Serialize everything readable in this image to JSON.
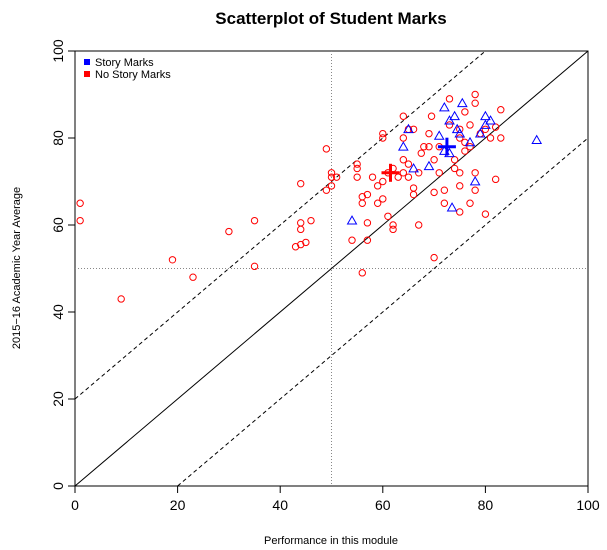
{
  "chart_data": {
    "type": "scatter",
    "title": "Scatterplot of Student Marks",
    "xlabel": "Performance in this module",
    "ylabel": "2015−16 Academic Year Average",
    "xlim": [
      0,
      100
    ],
    "ylim": [
      0,
      100
    ],
    "xticks": [
      "0",
      "20",
      "40",
      "60",
      "80",
      "100"
    ],
    "yticks": [
      "0",
      "20",
      "40",
      "60",
      "80",
      "100"
    ],
    "grid": false,
    "legend_position": "top-left",
    "reference_lines": {
      "identity": {
        "slope": 1,
        "intercept": 0
      },
      "upper_band": {
        "slope": 1,
        "intercept": 20
      },
      "lower_band": {
        "slope": 1,
        "intercept": -20
      },
      "vertical_dotted_x": 50,
      "horizontal_dotted_y": 50
    },
    "series": [
      {
        "name": "Story Marks",
        "color": "#0000ff",
        "marker": "triangle",
        "mean": [
          72.5,
          78
        ],
        "points": [
          [
            54,
            61
          ],
          [
            64,
            78
          ],
          [
            65,
            82
          ],
          [
            66,
            73
          ],
          [
            69,
            73.5
          ],
          [
            71,
            80.5
          ],
          [
            72,
            77
          ],
          [
            72,
            87
          ],
          [
            73,
            76.5
          ],
          [
            73,
            84
          ],
          [
            73.5,
            64
          ],
          [
            74,
            85
          ],
          [
            74.5,
            82
          ],
          [
            75,
            81
          ],
          [
            75.5,
            88
          ],
          [
            77,
            79
          ],
          [
            78,
            70
          ],
          [
            79,
            81
          ],
          [
            80,
            85
          ],
          [
            80,
            83
          ],
          [
            81,
            84
          ],
          [
            90,
            79.5
          ]
        ]
      },
      {
        "name": "No Story Marks",
        "color": "#ff0000",
        "marker": "circle",
        "mean": [
          61.5,
          72
        ],
        "points": [
          [
            1,
            65
          ],
          [
            1,
            61
          ],
          [
            9,
            43
          ],
          [
            19,
            52
          ],
          [
            23,
            48
          ],
          [
            30,
            58.5
          ],
          [
            35,
            61
          ],
          [
            35,
            50.5
          ],
          [
            43,
            55
          ],
          [
            44,
            69.5
          ],
          [
            44,
            60.5
          ],
          [
            44,
            59
          ],
          [
            44,
            55.5
          ],
          [
            45,
            56
          ],
          [
            46,
            61
          ],
          [
            49,
            68
          ],
          [
            49,
            77.5
          ],
          [
            50,
            72
          ],
          [
            50,
            71
          ],
          [
            50,
            69
          ],
          [
            51,
            71
          ],
          [
            54,
            56.5
          ],
          [
            55,
            74
          ],
          [
            55,
            73
          ],
          [
            55,
            71
          ],
          [
            56,
            66.5
          ],
          [
            56,
            65
          ],
          [
            56,
            49
          ],
          [
            57,
            67
          ],
          [
            57,
            60.5
          ],
          [
            57,
            56.5
          ],
          [
            58,
            71
          ],
          [
            59,
            69
          ],
          [
            59,
            65
          ],
          [
            60,
            81
          ],
          [
            60,
            80
          ],
          [
            60,
            70
          ],
          [
            60,
            66
          ],
          [
            61,
            72
          ],
          [
            61,
            62
          ],
          [
            62,
            73
          ],
          [
            62,
            60
          ],
          [
            62,
            59
          ],
          [
            63,
            71
          ],
          [
            64,
            75
          ],
          [
            64,
            72
          ],
          [
            64,
            80
          ],
          [
            64,
            85
          ],
          [
            65,
            82
          ],
          [
            65,
            74
          ],
          [
            65,
            71
          ],
          [
            66,
            68.5
          ],
          [
            66,
            67
          ],
          [
            66,
            82
          ],
          [
            67,
            60
          ],
          [
            67,
            72
          ],
          [
            67.5,
            76.5
          ],
          [
            68,
            78
          ],
          [
            69,
            81
          ],
          [
            69,
            78
          ],
          [
            69.5,
            85
          ],
          [
            70,
            75
          ],
          [
            70,
            67.5
          ],
          [
            70,
            52.5
          ],
          [
            71,
            78
          ],
          [
            71,
            72
          ],
          [
            72,
            68
          ],
          [
            72,
            65
          ],
          [
            73,
            89
          ],
          [
            73,
            83
          ],
          [
            74,
            75
          ],
          [
            74,
            73
          ],
          [
            75,
            82
          ],
          [
            75,
            80
          ],
          [
            75,
            72
          ],
          [
            75,
            69
          ],
          [
            75,
            63
          ],
          [
            76,
            77
          ],
          [
            76,
            79
          ],
          [
            76,
            86
          ],
          [
            77,
            65
          ],
          [
            77,
            78
          ],
          [
            77,
            83
          ],
          [
            78,
            88
          ],
          [
            78,
            90
          ],
          [
            78,
            72
          ],
          [
            78,
            68
          ],
          [
            79,
            81
          ],
          [
            80,
            62.5
          ],
          [
            80,
            82
          ],
          [
            81,
            80
          ],
          [
            82,
            70.5
          ],
          [
            82,
            82.5
          ],
          [
            83,
            86.5
          ],
          [
            83,
            80
          ]
        ]
      }
    ]
  }
}
